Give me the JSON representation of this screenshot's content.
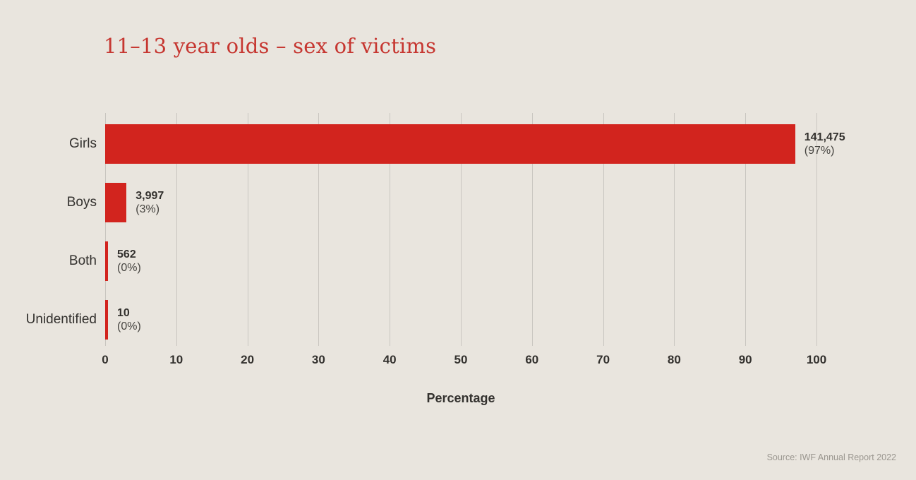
{
  "title": "11–13 year olds – sex of victims",
  "source": "Source: IWF Annual Report 2022",
  "chart_data": {
    "type": "bar",
    "orientation": "horizontal",
    "title": "11–13 year olds – sex of victims",
    "categories": [
      "Girls",
      "Boys",
      "Both",
      "Unidentified"
    ],
    "values": [
      141475,
      3997,
      562,
      10
    ],
    "value_labels": [
      "141,475",
      "3,997",
      "562",
      "10"
    ],
    "percent_labels": [
      "(97%)",
      "(3%)",
      "(0%)",
      "(0%)"
    ],
    "bar_percents": [
      97,
      3,
      0.4,
      0.4
    ],
    "xlabel": "Percentage",
    "ylabel": "",
    "x_ticks": [
      0,
      10,
      20,
      30,
      40,
      50,
      60,
      70,
      80,
      90,
      100
    ],
    "xlim": [
      0,
      100
    ],
    "grid": true,
    "legend": "none",
    "colors": {
      "bar": "#d2241e",
      "title": "#c63630",
      "background": "#e9e5de",
      "gridline": "#c9c6c0",
      "text": "#33312e",
      "source_text": "#9a968f"
    }
  }
}
